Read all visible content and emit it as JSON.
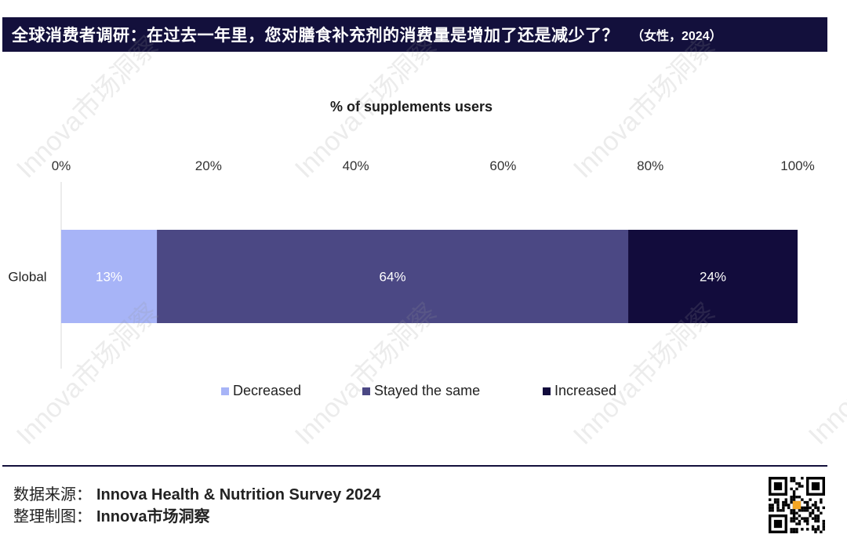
{
  "header": {
    "title": "全球消费者调研：在过去一年里，您对膳食补充剂的消费量是增加了还是减少了？",
    "subtitle": "（女性，2024）"
  },
  "watermark": "Innova市场洞察",
  "chart_data": {
    "type": "bar",
    "orientation": "horizontal",
    "stacked": true,
    "title": "% of supplements users",
    "categories": [
      "Global"
    ],
    "series": [
      {
        "name": "Decreased",
        "values": [
          13
        ],
        "label": "13%",
        "color": "#a7b4f7"
      },
      {
        "name": "Stayed the same",
        "values": [
          64
        ],
        "label": "64%",
        "color": "#4b4884"
      },
      {
        "name": "Increased",
        "values": [
          24
        ],
        "label": "24%",
        "color": "#120c3c"
      }
    ],
    "xlim": [
      0,
      100
    ],
    "xticks": [
      "0%",
      "20%",
      "40%",
      "60%",
      "80%",
      "100%"
    ],
    "legend_position": "bottom",
    "grid": false
  },
  "footer": {
    "source_label": "数据来源：",
    "source_value": "Innova Health & Nutrition Survey 2024",
    "made_label": "整理制图：",
    "made_value": "Innova市场洞察"
  },
  "icons": {
    "qr": "qr-code-icon"
  }
}
